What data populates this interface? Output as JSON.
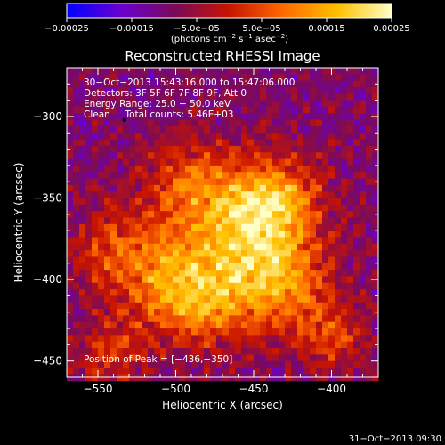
{
  "chart_data": {
    "type": "heatmap",
    "title": "Reconstructed RHESSI Image",
    "xlabel": "Heliocentric X (arcsec)",
    "ylabel": "Heliocentric Y (arcsec)",
    "xlim": [
      -570,
      -370
    ],
    "ylim": [
      -460,
      -270
    ],
    "x_ticks": [
      -550,
      -500,
      -450,
      -400
    ],
    "y_ticks": [
      -300,
      -350,
      -400,
      -450
    ],
    "x_tick_labels": [
      "−550",
      "−500",
      "−450",
      "−400"
    ],
    "y_tick_labels": [
      "−300",
      "−350",
      "−400",
      "−450"
    ],
    "colorbar": {
      "min": -0.00025,
      "max": 0.00025,
      "tick_labels": [
        "−0.00025",
        "−0.00015",
        "−5.0e−05",
        "5.0e−05",
        "0.00015",
        "0.00025"
      ],
      "units_prefix": "(photons cm",
      "units_exp1": "−2",
      "units_mid": " s",
      "units_exp2": "−1",
      "units_mid2": " asec",
      "units_exp3": "−2",
      "units_suffix": ")",
      "colors": [
        "#0000ff",
        "#6a00d0",
        "#7a0a5a",
        "#c81400",
        "#ff6a00",
        "#ffc000",
        "#ffffc8"
      ]
    },
    "annotations": [
      "30−Oct−2013 15:43:16.000 to 15:47:06.000",
      "Detectors: 3F 5F 6F 7F 8F 9F, Att 0",
      "Energy Range: 25.0 − 50.0 keV",
      "Clean     Total counts: 5.46E+03"
    ],
    "peak_label": "Position of Peak = [−436,−350]",
    "peak": [
      -436,
      -350
    ],
    "sources": [
      {
        "x": -490,
        "y": -340,
        "amp": 0.00014,
        "sx": 22,
        "sy": 18
      },
      {
        "x": -455,
        "y": -375,
        "amp": 0.00022,
        "sx": 28,
        "sy": 25
      },
      {
        "x": -436,
        "y": -350,
        "amp": 0.00018,
        "sx": 20,
        "sy": 18
      },
      {
        "x": -510,
        "y": -395,
        "amp": 0.00016,
        "sx": 24,
        "sy": 22
      },
      {
        "x": -480,
        "y": -415,
        "amp": 0.00017,
        "sx": 22,
        "sy": 18
      },
      {
        "x": -430,
        "y": -405,
        "amp": 0.00015,
        "sx": 20,
        "sy": 20
      },
      {
        "x": -400,
        "y": -435,
        "amp": 0.00012,
        "sx": 16,
        "sy": 14
      },
      {
        "x": -540,
        "y": -445,
        "amp": 0.0001,
        "sx": 18,
        "sy": 14
      },
      {
        "x": -545,
        "y": -380,
        "amp": 9e-05,
        "sx": 16,
        "sy": 18
      }
    ],
    "background": -9e-05,
    "timestamp": "31−Oct−2013 09:30"
  }
}
